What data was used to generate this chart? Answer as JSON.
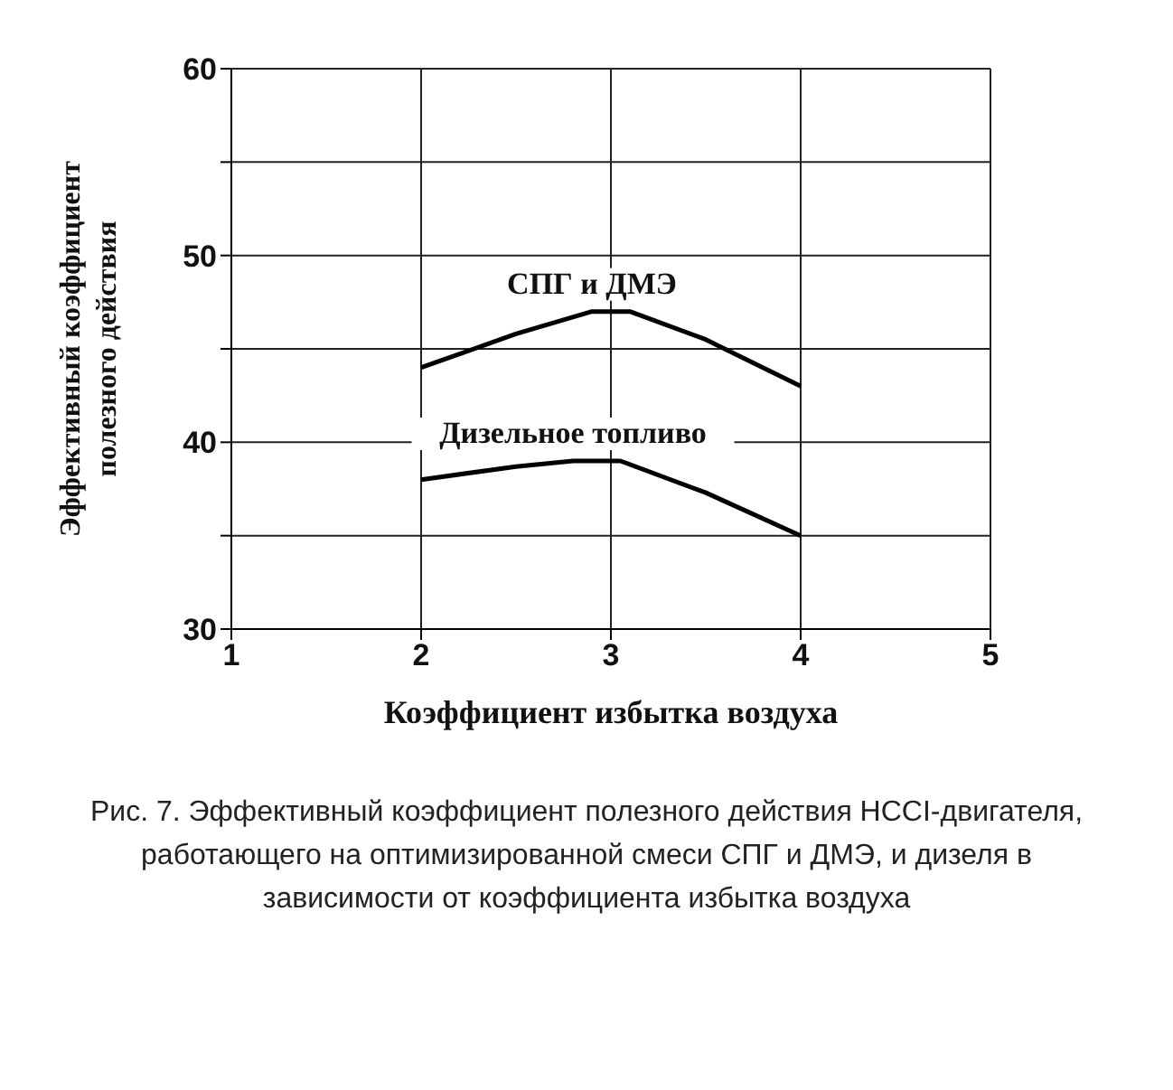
{
  "chart_data": {
    "type": "line",
    "xlabel": "Коэффициент   избытка воздуха",
    "ylabel": "Эффективный коэффициент полезного действия",
    "xlim": [
      1,
      5
    ],
    "xticks": [
      1,
      2,
      3,
      4,
      5
    ],
    "ylim": [
      30,
      60
    ],
    "yticks": [
      30,
      {
        "value": 35,
        "label": null
      },
      40,
      {
        "value": 45,
        "label": null
      },
      50,
      {
        "value": 55,
        "label": null
      },
      60
    ],
    "grid": true,
    "legend": false,
    "marker": "none",
    "line_style": "solid",
    "series": [
      {
        "name": "СПГ и ДМЭ",
        "color": "#000000",
        "x": [
          2,
          2.5,
          2.9,
          3.1,
          3.5,
          4
        ],
        "values": [
          44,
          45.8,
          47,
          47,
          45.5,
          43
        ]
      },
      {
        "name": "Дизельное топливо",
        "color": "#000000",
        "x": [
          2,
          2.5,
          2.8,
          3.05,
          3.5,
          4
        ],
        "values": [
          38,
          38.7,
          39,
          39,
          37.3,
          35
        ]
      }
    ],
    "annotations": [
      "Рис. 7. Эффективный коэффициент полезного действия HCCI-двигателя, работающего на оптимизированной смеси СПГ и ДМЭ, и дизеля в зависимости от коэффициента избытка воздуха"
    ]
  }
}
